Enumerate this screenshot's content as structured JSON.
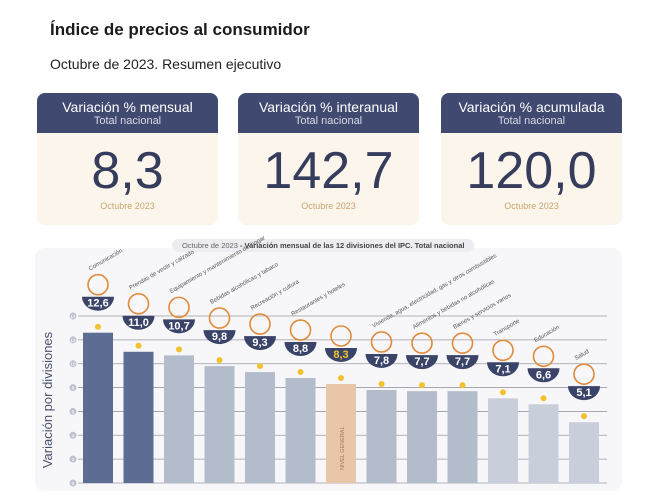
{
  "header": {
    "title": "Índice de precios al consumidor",
    "subtitle": "Octubre de 2023. Resumen ejecutivo"
  },
  "cards": [
    {
      "title": "Variación % mensual",
      "scope": "Total nacional",
      "value": "8,3",
      "period": "Octubre 2023"
    },
    {
      "title": "Variación % interanual",
      "scope": "Total nacional",
      "value": "142,7",
      "period": "Octubre 2023"
    },
    {
      "title": "Variación % acumulada",
      "scope": "Total nacional",
      "value": "120,0",
      "period": "Octubre 2023"
    }
  ],
  "chart_data": {
    "type": "bar",
    "title_prefix": "Octubre de 2023",
    "title": " - Variación mensual de las 12 divisiones del IPC. Total nacional",
    "ylabel": "Variación por divisiones",
    "ylim": [
      0,
      14
    ],
    "yticks": [
      "0",
      "2",
      "4",
      "6",
      "8",
      "10",
      "12",
      "14"
    ],
    "categories": [
      "Comunicación",
      "Prendas de vestir y calzado",
      "Equipamiento y mantenimiento del hogar",
      "Bebidas alcohólicas y tabaco",
      "Recreación y cultura",
      "Restaurantes y hoteles",
      "Nivel general",
      "Vivienda, agua, electricidad, gas y otros combustibles",
      "Alimentos y bebidas no alcohólicas",
      "Bienes y servicios varios",
      "Transporte",
      "Educación",
      "Salud"
    ],
    "values": [
      12.6,
      11.0,
      10.7,
      9.8,
      9.3,
      8.8,
      8.3,
      7.8,
      7.7,
      7.7,
      7.1,
      6.6,
      5.1
    ],
    "value_labels": [
      "12,6",
      "11,0",
      "10,7",
      "9,8",
      "9,3",
      "8,8",
      "8,3",
      "7,8",
      "7,7",
      "7,7",
      "7,1",
      "6,6",
      "5,1"
    ],
    "bar_label_general": "NIVEL GENERAL",
    "colors": {
      "dark": "#5d6c93",
      "mid": "#b3bccb",
      "light": "#c9cfda",
      "general": "#e9c6aa",
      "badge": "#3a4468",
      "dot": "#f2c22e",
      "icon": "#e08a3c"
    }
  }
}
